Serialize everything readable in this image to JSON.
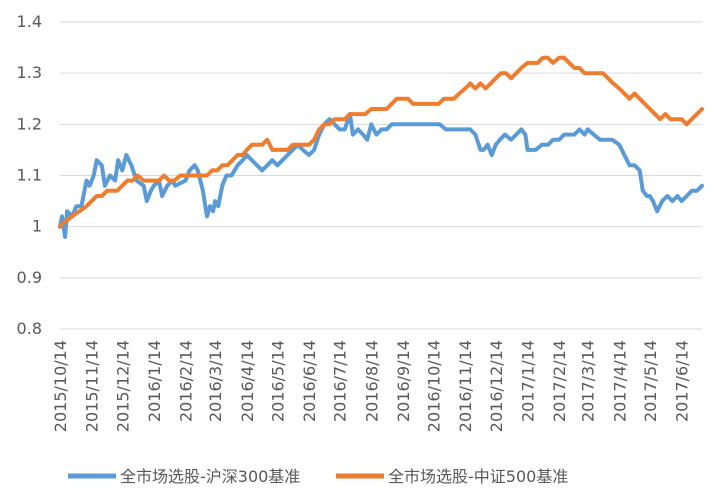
{
  "chart_data": {
    "type": "line",
    "title": "",
    "xlabel": "",
    "ylabel": "",
    "ylim": [
      0.8,
      1.4
    ],
    "yticks": [
      "0.8",
      "0.9",
      "1",
      "1.1",
      "1.2",
      "1.3",
      "1.4"
    ],
    "xticks": [
      "2015/10/14",
      "2015/11/14",
      "2015/12/14",
      "2016/1/14",
      "2016/2/14",
      "2016/3/14",
      "2016/4/14",
      "2016/5/14",
      "2016/6/14",
      "2016/7/14",
      "2016/8/14",
      "2016/9/14",
      "2016/10/14",
      "2016/11/14",
      "2016/12/14",
      "2017/1/14",
      "2017/2/14",
      "2017/3/14",
      "2017/4/14",
      "2017/5/14",
      "2017/6/14"
    ],
    "grid": "horizontal",
    "legend": "bottom",
    "series": [
      {
        "name": "全市场选股-沪深300基准",
        "color": "#5b9bd5",
        "points": [
          [
            "2015/10/14",
            1.0
          ],
          [
            "2015/10/16",
            1.02
          ],
          [
            "2015/10/19",
            0.98
          ],
          [
            "2015/10/21",
            1.03
          ],
          [
            "2015/10/26",
            1.02
          ],
          [
            "2015/10/30",
            1.04
          ],
          [
            "2015/11/4",
            1.04
          ],
          [
            "2015/11/9",
            1.09
          ],
          [
            "2015/11/12",
            1.08
          ],
          [
            "2015/11/16",
            1.1
          ],
          [
            "2015/11/19",
            1.13
          ],
          [
            "2015/11/24",
            1.12
          ],
          [
            "2015/11/27",
            1.08
          ],
          [
            "2015/12/2",
            1.1
          ],
          [
            "2015/12/7",
            1.09
          ],
          [
            "2015/12/10",
            1.13
          ],
          [
            "2015/12/14",
            1.11
          ],
          [
            "2015/12/18",
            1.14
          ],
          [
            "2015/12/23",
            1.12
          ],
          [
            "2015/12/28",
            1.09
          ],
          [
            "2016/1/4",
            1.08
          ],
          [
            "2016/1/7",
            1.05
          ],
          [
            "2016/1/11",
            1.07
          ],
          [
            "2016/1/14",
            1.08
          ],
          [
            "2016/1/19",
            1.09
          ],
          [
            "2016/1/22",
            1.06
          ],
          [
            "2016/1/27",
            1.08
          ],
          [
            "2016/2/1",
            1.09
          ],
          [
            "2016/2/4",
            1.08
          ],
          [
            "2016/2/14",
            1.09
          ],
          [
            "2016/2/18",
            1.11
          ],
          [
            "2016/2/23",
            1.12
          ],
          [
            "2016/2/26",
            1.11
          ],
          [
            "2016/3/2",
            1.07
          ],
          [
            "2016/3/6",
            1.02
          ],
          [
            "2016/3/9",
            1.04
          ],
          [
            "2016/3/12",
            1.03
          ],
          [
            "2016/3/14",
            1.05
          ],
          [
            "2016/3/17",
            1.04
          ],
          [
            "2016/3/21",
            1.08
          ],
          [
            "2016/3/25",
            1.1
          ],
          [
            "2016/3/30",
            1.1
          ],
          [
            "2016/4/5",
            1.12
          ],
          [
            "2016/4/10",
            1.13
          ],
          [
            "2016/4/14",
            1.14
          ],
          [
            "2016/4/19",
            1.13
          ],
          [
            "2016/4/24",
            1.12
          ],
          [
            "2016/4/29",
            1.11
          ],
          [
            "2016/5/4",
            1.12
          ],
          [
            "2016/5/9",
            1.13
          ],
          [
            "2016/5/14",
            1.12
          ],
          [
            "2016/5/19",
            1.13
          ],
          [
            "2016/5/24",
            1.14
          ],
          [
            "2016/5/29",
            1.15
          ],
          [
            "2016/6/3",
            1.16
          ],
          [
            "2016/6/8",
            1.15
          ],
          [
            "2016/6/14",
            1.14
          ],
          [
            "2016/6/19",
            1.15
          ],
          [
            "2016/6/24",
            1.18
          ],
          [
            "2016/6/29",
            1.2
          ],
          [
            "2016/7/4",
            1.21
          ],
          [
            "2016/7/9",
            1.2
          ],
          [
            "2016/7/14",
            1.19
          ],
          [
            "2016/7/19",
            1.19
          ],
          [
            "2016/7/24",
            1.22
          ],
          [
            "2016/7/27",
            1.18
          ],
          [
            "2016/8/1",
            1.19
          ],
          [
            "2016/8/6",
            1.18
          ],
          [
            "2016/8/10",
            1.17
          ],
          [
            "2016/8/14",
            1.2
          ],
          [
            "2016/8/19",
            1.18
          ],
          [
            "2016/8/24",
            1.19
          ],
          [
            "2016/8/29",
            1.19
          ],
          [
            "2016/9/3",
            1.2
          ],
          [
            "2016/9/8",
            1.2
          ],
          [
            "2016/9/14",
            1.2
          ],
          [
            "2016/9/20",
            1.2
          ],
          [
            "2016/9/26",
            1.2
          ],
          [
            "2016/10/2",
            1.2
          ],
          [
            "2016/10/8",
            1.2
          ],
          [
            "2016/10/14",
            1.2
          ],
          [
            "2016/10/20",
            1.2
          ],
          [
            "2016/10/26",
            1.19
          ],
          [
            "2016/11/1",
            1.19
          ],
          [
            "2016/11/7",
            1.19
          ],
          [
            "2016/11/14",
            1.19
          ],
          [
            "2016/11/19",
            1.19
          ],
          [
            "2016/11/24",
            1.18
          ],
          [
            "2016/11/29",
            1.15
          ],
          [
            "2016/12/2",
            1.15
          ],
          [
            "2016/12/6",
            1.16
          ],
          [
            "2016/12/10",
            1.14
          ],
          [
            "2016/12/14",
            1.16
          ],
          [
            "2016/12/18",
            1.17
          ],
          [
            "2016/12/23",
            1.18
          ],
          [
            "2016/12/29",
            1.17
          ],
          [
            "2017/1/3",
            1.18
          ],
          [
            "2017/1/8",
            1.19
          ],
          [
            "2017/1/12",
            1.18
          ],
          [
            "2017/1/14",
            1.15
          ],
          [
            "2017/1/18",
            1.15
          ],
          [
            "2017/1/22",
            1.15
          ],
          [
            "2017/1/28",
            1.16
          ],
          [
            "2017/2/3",
            1.16
          ],
          [
            "2017/2/8",
            1.17
          ],
          [
            "2017/2/14",
            1.17
          ],
          [
            "2017/2/19",
            1.18
          ],
          [
            "2017/2/24",
            1.18
          ],
          [
            "2017/3/1",
            1.18
          ],
          [
            "2017/3/6",
            1.19
          ],
          [
            "2017/3/11",
            1.18
          ],
          [
            "2017/3/14",
            1.19
          ],
          [
            "2017/3/20",
            1.18
          ],
          [
            "2017/3/26",
            1.17
          ],
          [
            "2017/4/1",
            1.17
          ],
          [
            "2017/4/7",
            1.17
          ],
          [
            "2017/4/14",
            1.16
          ],
          [
            "2017/4/19",
            1.14
          ],
          [
            "2017/4/24",
            1.12
          ],
          [
            "2017/4/29",
            1.12
          ],
          [
            "2017/5/4",
            1.11
          ],
          [
            "2017/5/7",
            1.07
          ],
          [
            "2017/5/11",
            1.06
          ],
          [
            "2017/5/14",
            1.06
          ],
          [
            "2017/5/17",
            1.05
          ],
          [
            "2017/5/21",
            1.03
          ],
          [
            "2017/5/26",
            1.05
          ],
          [
            "2017/5/31",
            1.06
          ],
          [
            "2017/6/5",
            1.05
          ],
          [
            "2017/6/10",
            1.06
          ],
          [
            "2017/6/14",
            1.05
          ],
          [
            "2017/6/19",
            1.06
          ],
          [
            "2017/6/24",
            1.07
          ],
          [
            "2017/6/29",
            1.07
          ],
          [
            "2017/7/4",
            1.08
          ]
        ]
      },
      {
        "name": "全市场选股-中证500基准",
        "color": "#ed7d31",
        "points": [
          [
            "2015/10/14",
            1.0
          ],
          [
            "2015/10/19",
            1.01
          ],
          [
            "2015/10/26",
            1.02
          ],
          [
            "2015/11/2",
            1.03
          ],
          [
            "2015/11/9",
            1.04
          ],
          [
            "2015/11/14",
            1.05
          ],
          [
            "2015/11/19",
            1.06
          ],
          [
            "2015/11/24",
            1.06
          ],
          [
            "2015/11/29",
            1.07
          ],
          [
            "2015/12/4",
            1.07
          ],
          [
            "2015/12/9",
            1.07
          ],
          [
            "2015/12/14",
            1.08
          ],
          [
            "2015/12/19",
            1.09
          ],
          [
            "2015/12/24",
            1.09
          ],
          [
            "2015/12/29",
            1.1
          ],
          [
            "2016/1/4",
            1.09
          ],
          [
            "2016/1/9",
            1.09
          ],
          [
            "2016/1/14",
            1.09
          ],
          [
            "2016/1/19",
            1.09
          ],
          [
            "2016/1/24",
            1.1
          ],
          [
            "2016/1/29",
            1.09
          ],
          [
            "2016/2/3",
            1.09
          ],
          [
            "2016/2/9",
            1.1
          ],
          [
            "2016/2/14",
            1.1
          ],
          [
            "2016/2/19",
            1.1
          ],
          [
            "2016/2/24",
            1.1
          ],
          [
            "2016/3/1",
            1.1
          ],
          [
            "2016/3/6",
            1.1
          ],
          [
            "2016/3/11",
            1.11
          ],
          [
            "2016/3/16",
            1.11
          ],
          [
            "2016/3/21",
            1.12
          ],
          [
            "2016/3/26",
            1.12
          ],
          [
            "2016/3/31",
            1.13
          ],
          [
            "2016/4/5",
            1.14
          ],
          [
            "2016/4/10",
            1.14
          ],
          [
            "2016/4/14",
            1.15
          ],
          [
            "2016/4/19",
            1.16
          ],
          [
            "2016/4/24",
            1.16
          ],
          [
            "2016/4/29",
            1.16
          ],
          [
            "2016/5/4",
            1.17
          ],
          [
            "2016/5/9",
            1.15
          ],
          [
            "2016/5/14",
            1.15
          ],
          [
            "2016/5/19",
            1.15
          ],
          [
            "2016/5/24",
            1.15
          ],
          [
            "2016/5/29",
            1.16
          ],
          [
            "2016/6/3",
            1.16
          ],
          [
            "2016/6/8",
            1.16
          ],
          [
            "2016/6/14",
            1.16
          ],
          [
            "2016/6/19",
            1.17
          ],
          [
            "2016/6/24",
            1.19
          ],
          [
            "2016/6/29",
            1.2
          ],
          [
            "2016/7/4",
            1.2
          ],
          [
            "2016/7/9",
            1.21
          ],
          [
            "2016/7/14",
            1.21
          ],
          [
            "2016/7/19",
            1.21
          ],
          [
            "2016/7/24",
            1.22
          ],
          [
            "2016/7/29",
            1.22
          ],
          [
            "2016/8/3",
            1.22
          ],
          [
            "2016/8/8",
            1.22
          ],
          [
            "2016/8/14",
            1.23
          ],
          [
            "2016/8/19",
            1.23
          ],
          [
            "2016/8/24",
            1.23
          ],
          [
            "2016/8/29",
            1.23
          ],
          [
            "2016/9/3",
            1.24
          ],
          [
            "2016/9/8",
            1.25
          ],
          [
            "2016/9/14",
            1.25
          ],
          [
            "2016/9/19",
            1.25
          ],
          [
            "2016/9/24",
            1.24
          ],
          [
            "2016/9/29",
            1.24
          ],
          [
            "2016/10/4",
            1.24
          ],
          [
            "2016/10/9",
            1.24
          ],
          [
            "2016/10/14",
            1.24
          ],
          [
            "2016/10/19",
            1.24
          ],
          [
            "2016/10/24",
            1.25
          ],
          [
            "2016/10/29",
            1.25
          ],
          [
            "2016/11/3",
            1.25
          ],
          [
            "2016/11/8",
            1.26
          ],
          [
            "2016/11/14",
            1.27
          ],
          [
            "2016/11/19",
            1.28
          ],
          [
            "2016/11/24",
            1.27
          ],
          [
            "2016/11/29",
            1.28
          ],
          [
            "2016/12/4",
            1.27
          ],
          [
            "2016/12/9",
            1.28
          ],
          [
            "2016/12/14",
            1.29
          ],
          [
            "2016/12/19",
            1.3
          ],
          [
            "2016/12/24",
            1.3
          ],
          [
            "2016/12/29",
            1.29
          ],
          [
            "2017/1/3",
            1.3
          ],
          [
            "2017/1/8",
            1.31
          ],
          [
            "2017/1/14",
            1.32
          ],
          [
            "2017/1/19",
            1.32
          ],
          [
            "2017/1/24",
            1.32
          ],
          [
            "2017/1/29",
            1.33
          ],
          [
            "2017/2/3",
            1.33
          ],
          [
            "2017/2/8",
            1.32
          ],
          [
            "2017/2/14",
            1.33
          ],
          [
            "2017/2/19",
            1.33
          ],
          [
            "2017/2/24",
            1.32
          ],
          [
            "2017/3/1",
            1.31
          ],
          [
            "2017/3/6",
            1.31
          ],
          [
            "2017/3/11",
            1.3
          ],
          [
            "2017/3/14",
            1.3
          ],
          [
            "2017/3/19",
            1.3
          ],
          [
            "2017/3/24",
            1.3
          ],
          [
            "2017/3/29",
            1.3
          ],
          [
            "2017/4/3",
            1.29
          ],
          [
            "2017/4/8",
            1.28
          ],
          [
            "2017/4/14",
            1.27
          ],
          [
            "2017/4/19",
            1.26
          ],
          [
            "2017/4/24",
            1.25
          ],
          [
            "2017/4/29",
            1.26
          ],
          [
            "2017/5/4",
            1.25
          ],
          [
            "2017/5/9",
            1.24
          ],
          [
            "2017/5/14",
            1.23
          ],
          [
            "2017/5/19",
            1.22
          ],
          [
            "2017/5/24",
            1.21
          ],
          [
            "2017/5/29",
            1.22
          ],
          [
            "2017/6/3",
            1.21
          ],
          [
            "2017/6/8",
            1.21
          ],
          [
            "2017/6/14",
            1.21
          ],
          [
            "2017/6/19",
            1.2
          ],
          [
            "2017/6/24",
            1.21
          ],
          [
            "2017/6/29",
            1.22
          ],
          [
            "2017/7/4",
            1.23
          ]
        ]
      }
    ]
  }
}
